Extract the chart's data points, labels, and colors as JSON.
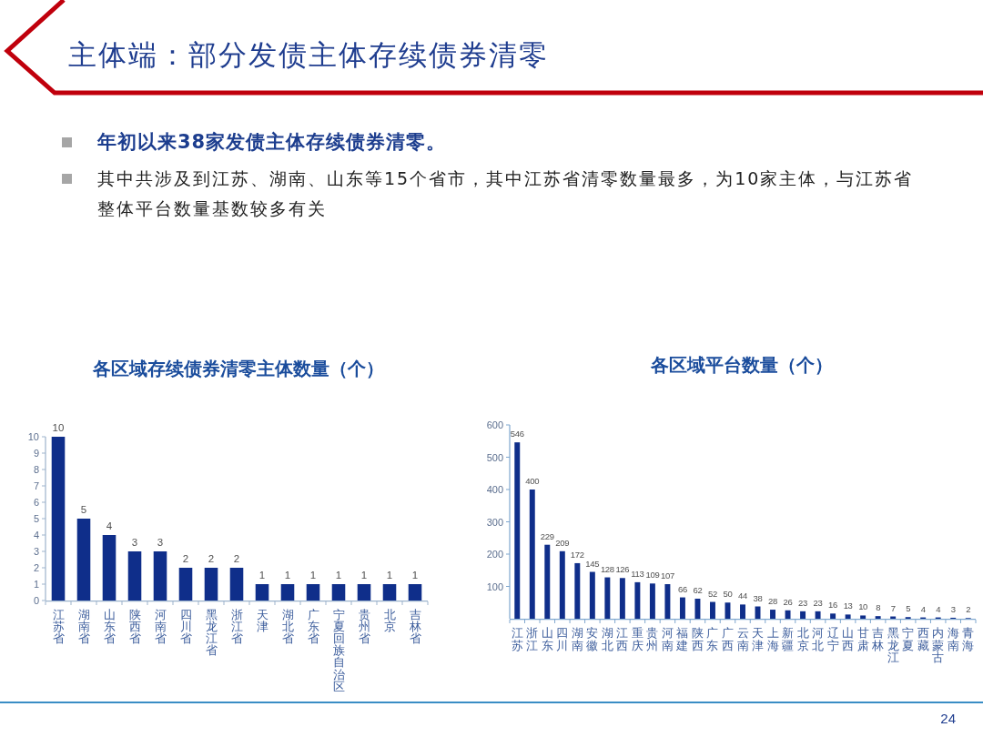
{
  "chart_data": [
    {
      "type": "other",
      "title": "主体端：部分发债主体存续债券清零",
      "annotations": [
        "年初以来38家发债主体存续债券清零。",
        "其中共涉及到江苏、湖南、山东等15个省市，其中江苏省清零数量最多，为10家主体，与江苏省整体平台数量基数较多有关",
        "24"
      ]
    },
    {
      "type": "bar",
      "title": "各区域存续债券清零主体数量（个）",
      "categories": [
        "江苏省",
        "湖南省",
        "山东省",
        "陕西省",
        "河南省",
        "四川省",
        "黑龙江省",
        "浙江省",
        "天津",
        "湖北省",
        "广东省",
        "宁夏回族自治区",
        "贵州省",
        "北京",
        "吉林省"
      ],
      "values": [
        10,
        5,
        4,
        3,
        3,
        2,
        2,
        2,
        1,
        1,
        1,
        1,
        1,
        1,
        1
      ],
      "color": "#0f2e8a",
      "ylim": [
        0,
        10
      ],
      "yticks": [
        0,
        1,
        2,
        3,
        4,
        5,
        6,
        7,
        8,
        9,
        10
      ],
      "data_labels": true
    },
    {
      "type": "bar",
      "title": "各区域平台数量（个）",
      "categories": [
        "江苏",
        "浙江",
        "山东",
        "四川",
        "湖南",
        "安徽",
        "湖北",
        "江西",
        "重庆",
        "贵州",
        "河南",
        "福建",
        "陕西",
        "广东",
        "广西",
        "云南",
        "天津",
        "上海",
        "新疆",
        "北京",
        "河北",
        "辽宁",
        "山西",
        "甘肃",
        "吉林",
        "黑龙江",
        "宁夏",
        "西藏",
        "内蒙古",
        "海南",
        "青海"
      ],
      "values": [
        546,
        400,
        229,
        209,
        172,
        145,
        128,
        126,
        113,
        109,
        107,
        66,
        62,
        52,
        50,
        44,
        38,
        28,
        26,
        23,
        23,
        16,
        13,
        10,
        8,
        7,
        5,
        4,
        4,
        3,
        2
      ],
      "color": "#0f2e8a",
      "ylim": [
        0,
        600
      ],
      "yticks": [
        100,
        200,
        300,
        400,
        500,
        600
      ],
      "data_labels": true
    }
  ]
}
